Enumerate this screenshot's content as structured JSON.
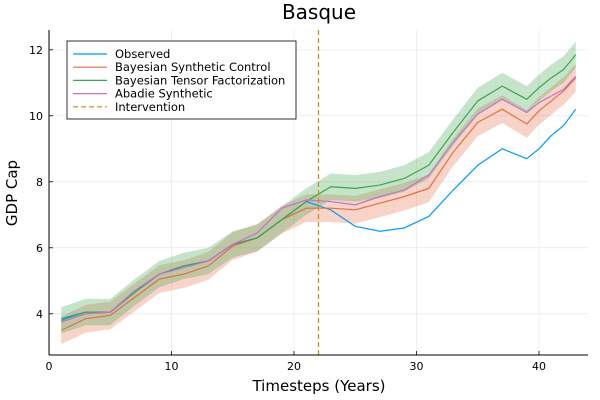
{
  "chart_data": {
    "type": "line",
    "title": "Basque",
    "xlabel": "Timesteps (Years)",
    "ylabel": "GDP Cap",
    "xlim": [
      0,
      44
    ],
    "ylim": [
      2.75,
      12.6
    ],
    "xticks": [
      0,
      10,
      20,
      30,
      40
    ],
    "yticks": [
      4,
      6,
      8,
      10,
      12
    ],
    "grid": true,
    "legend_position": "top-left",
    "intervention_x": 22,
    "x": [
      1,
      3,
      5,
      7,
      9,
      11,
      13,
      15,
      17,
      19,
      21,
      23,
      25,
      27,
      29,
      31,
      33,
      35,
      37,
      39,
      40,
      41,
      42,
      43
    ],
    "series": [
      {
        "name": "Observed",
        "color": "#009AFA",
        "values": [
          3.85,
          4.05,
          4.05,
          4.65,
          5.2,
          5.45,
          5.6,
          6.1,
          6.3,
          6.85,
          7.4,
          7.15,
          6.65,
          6.5,
          6.6,
          6.95,
          7.75,
          8.5,
          9.0,
          8.7,
          9.0,
          9.4,
          9.7,
          10.2
        ]
      },
      {
        "name": "Bayesian Synthetic Control",
        "color": "#E36F47",
        "band": 0.42,
        "values": [
          3.5,
          3.85,
          3.95,
          4.5,
          5.05,
          5.2,
          5.45,
          6.05,
          6.3,
          6.85,
          7.2,
          7.2,
          7.15,
          7.35,
          7.55,
          7.8,
          8.9,
          9.8,
          10.2,
          9.75,
          10.15,
          10.45,
          10.75,
          11.15
        ]
      },
      {
        "name": "Bayesian Tensor Factorization",
        "color": "#3EA44E",
        "band": 0.4,
        "values": [
          3.8,
          4.05,
          4.05,
          4.65,
          5.2,
          5.45,
          5.6,
          6.1,
          6.3,
          6.85,
          7.4,
          7.85,
          7.8,
          7.9,
          8.1,
          8.5,
          9.5,
          10.45,
          10.9,
          10.5,
          10.85,
          11.15,
          11.4,
          11.85
        ]
      },
      {
        "name": "Abadie Synthetic",
        "color": "#C271D2",
        "values": [
          3.75,
          4.0,
          4.05,
          4.7,
          5.2,
          5.4,
          5.6,
          6.1,
          6.45,
          7.2,
          7.45,
          7.4,
          7.3,
          7.55,
          7.75,
          8.2,
          9.2,
          10.05,
          10.5,
          10.1,
          10.4,
          10.6,
          10.8,
          11.2
        ]
      }
    ],
    "legend": [
      {
        "label": "Observed",
        "color": "#009AFA",
        "dash": false
      },
      {
        "label": "Bayesian Synthetic Control",
        "color": "#E36F47",
        "dash": false
      },
      {
        "label": "Bayesian Tensor Factorization",
        "color": "#3EA44E",
        "dash": false
      },
      {
        "label": "Abadie Synthetic",
        "color": "#C271D2",
        "dash": false
      },
      {
        "label": "Intervention",
        "color": "#C8921E",
        "dash": true
      }
    ]
  }
}
